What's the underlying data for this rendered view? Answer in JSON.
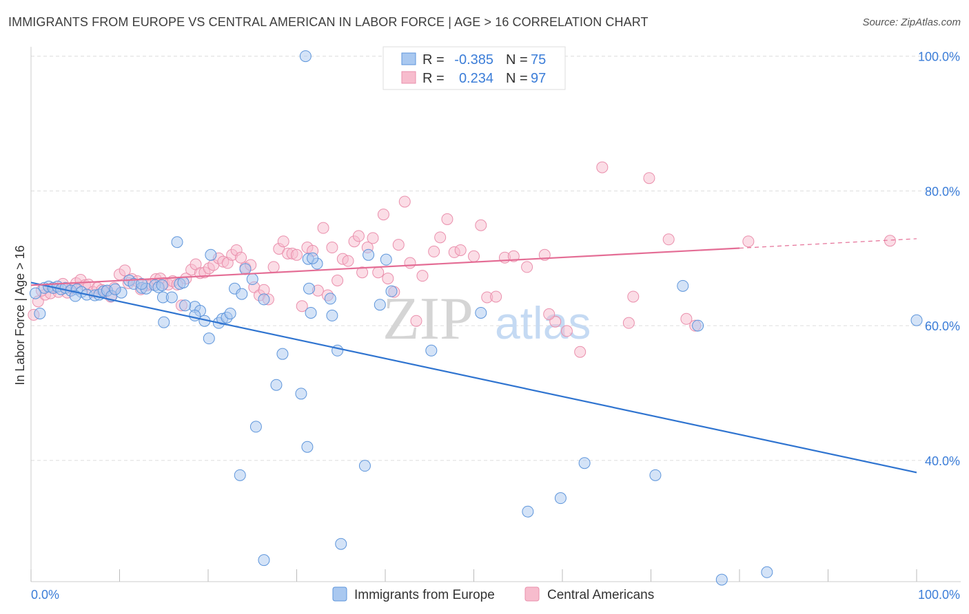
{
  "header": {
    "title": "IMMIGRANTS FROM EUROPE VS CENTRAL AMERICAN IN LABOR FORCE | AGE > 16 CORRELATION CHART",
    "source": "Source: ZipAtlas.com"
  },
  "stats": {
    "r_label": "R =",
    "n_label": "N =",
    "europe": {
      "r": "-0.385",
      "n": "75"
    },
    "central": {
      "r": "0.234",
      "n": "97"
    }
  },
  "watermark": {
    "zip": "ZIP",
    "atlas": "atlas"
  },
  "colors": {
    "europe_fill": "#a9c8f0",
    "europe_stroke": "#5d95db",
    "europe_line": "#2f74d0",
    "central_fill": "#f7bccd",
    "central_stroke": "#ea8fac",
    "central_line": "#e46d95",
    "tick": "#3b7dd8",
    "grid": "#dddddd"
  },
  "chart_data": {
    "type": "scatter",
    "title": "IMMIGRANTS FROM EUROPE VS CENTRAL AMERICAN IN LABOR FORCE | AGE > 16 CORRELATION CHART",
    "xlabel": "",
    "ylabel": "In Labor Force | Age > 16",
    "xlim": [
      0,
      100
    ],
    "ylim": [
      22,
      102
    ],
    "x_tick_labels": [
      "0.0%",
      "100.0%"
    ],
    "y_ticks": [
      40,
      60,
      80,
      100
    ],
    "y_tick_labels": [
      "40.0%",
      "60.0%",
      "80.0%",
      "100.0%"
    ],
    "grid": true,
    "legend": {
      "position": "bottom-center",
      "entries": [
        "Immigrants from Europe",
        "Central Americans"
      ]
    },
    "series": [
      {
        "name": "Immigrants from Europe",
        "r": -0.385,
        "n": 75,
        "trend": {
          "x": [
            0,
            100
          ],
          "y": [
            66.4,
            38.2
          ]
        },
        "points": [
          [
            1.5,
            65.6
          ],
          [
            2.0,
            65.8
          ],
          [
            2.5,
            65.6
          ],
          [
            3.0,
            65.8
          ],
          [
            3.4,
            65.4
          ],
          [
            3.9,
            65.6
          ],
          [
            4.5,
            65.2
          ],
          [
            5.2,
            65.4
          ],
          [
            5.7,
            65.0
          ],
          [
            6.3,
            64.6
          ],
          [
            7.2,
            64.5
          ],
          [
            7.7,
            64.6
          ],
          [
            8.2,
            65.1
          ],
          [
            8.6,
            65.2
          ],
          [
            9.1,
            64.4
          ],
          [
            10.2,
            64.9
          ],
          [
            11.1,
            66.7
          ],
          [
            11.6,
            66.2
          ],
          [
            12.5,
            65.6
          ],
          [
            13.0,
            65.5
          ],
          [
            14.0,
            66.0
          ],
          [
            14.4,
            65.7
          ],
          [
            14.9,
            64.2
          ],
          [
            15.9,
            64.2
          ],
          [
            16.8,
            66.2
          ],
          [
            17.2,
            66.4
          ],
          [
            12.5,
            66.2
          ],
          [
            9.5,
            65.4
          ],
          [
            15.0,
            60.5
          ],
          [
            14.8,
            66.0
          ],
          [
            18.5,
            62.8
          ],
          [
            19.1,
            62.2
          ],
          [
            18.5,
            61.5
          ],
          [
            17.4,
            63.0
          ],
          [
            20.1,
            58.1
          ],
          [
            19.6,
            60.7
          ],
          [
            21.2,
            60.4
          ],
          [
            21.6,
            61.0
          ],
          [
            22.1,
            61.2
          ],
          [
            22.5,
            61.8
          ],
          [
            23.0,
            65.5
          ],
          [
            23.8,
            64.7
          ],
          [
            25.0,
            66.9
          ],
          [
            24.2,
            68.4
          ],
          [
            26.3,
            63.9
          ],
          [
            20.3,
            70.5
          ],
          [
            16.5,
            72.4
          ],
          [
            28.4,
            55.8
          ],
          [
            27.7,
            51.2
          ],
          [
            30.5,
            49.9
          ],
          [
            25.4,
            45.0
          ],
          [
            31.6,
            61.9
          ],
          [
            33.8,
            64.0
          ],
          [
            32.3,
            69.2
          ],
          [
            31.3,
            69.9
          ],
          [
            31.8,
            70.0
          ],
          [
            31.4,
            65.5
          ],
          [
            38.1,
            70.5
          ],
          [
            39.4,
            63.1
          ],
          [
            40.1,
            69.8
          ],
          [
            40.7,
            65.1
          ],
          [
            34.0,
            61.5
          ],
          [
            34.6,
            56.3
          ],
          [
            31.2,
            42.0
          ],
          [
            37.7,
            39.2
          ],
          [
            23.6,
            37.8
          ],
          [
            26.3,
            25.2
          ],
          [
            35.0,
            27.6
          ],
          [
            45.2,
            56.3
          ],
          [
            48.9,
            96.6
          ],
          [
            50.8,
            61.9
          ],
          [
            56.1,
            32.4
          ],
          [
            59.8,
            34.4
          ],
          [
            62.5,
            39.6
          ],
          [
            73.6,
            65.9
          ],
          [
            70.5,
            37.8
          ],
          [
            75.3,
            60.0
          ],
          [
            78.0,
            22.3
          ],
          [
            83.1,
            23.4
          ],
          [
            100.0,
            60.8
          ],
          [
            31.0,
            100.0
          ],
          [
            1.0,
            61.8
          ],
          [
            5.0,
            64.4
          ],
          [
            0.5,
            64.8
          ]
        ]
      },
      {
        "name": "Central Americans",
        "r": 0.234,
        "n": 97,
        "trend": {
          "x": [
            0,
            80
          ],
          "y": [
            66.0,
            71.5
          ],
          "dashed_to": {
            "x": 100,
            "y": 72.9
          }
        },
        "points": [
          [
            0.8,
            63.6
          ],
          [
            1.6,
            64.6
          ],
          [
            2.2,
            64.8
          ],
          [
            2.6,
            65.6
          ],
          [
            3.1,
            65.0
          ],
          [
            3.6,
            66.2
          ],
          [
            4.1,
            64.9
          ],
          [
            4.6,
            65.6
          ],
          [
            5.1,
            66.3
          ],
          [
            5.6,
            66.8
          ],
          [
            6.1,
            66.0
          ],
          [
            6.5,
            66.1
          ],
          [
            7.0,
            65.0
          ],
          [
            7.5,
            65.6
          ],
          [
            8.0,
            65.3
          ],
          [
            8.5,
            65.1
          ],
          [
            9.0,
            64.3
          ],
          [
            9.4,
            65.6
          ],
          [
            10.0,
            67.6
          ],
          [
            10.6,
            68.2
          ],
          [
            11.0,
            66.3
          ],
          [
            11.4,
            66.9
          ],
          [
            12.0,
            66.6
          ],
          [
            12.4,
            65.4
          ],
          [
            13.1,
            66.0
          ],
          [
            13.6,
            66.1
          ],
          [
            14.1,
            66.9
          ],
          [
            14.6,
            67.0
          ],
          [
            15.0,
            66.3
          ],
          [
            15.5,
            66.1
          ],
          [
            16.0,
            66.6
          ],
          [
            16.5,
            66.1
          ],
          [
            17.0,
            63.0
          ],
          [
            17.5,
            67.0
          ],
          [
            18.1,
            68.3
          ],
          [
            18.6,
            69.1
          ],
          [
            19.1,
            67.8
          ],
          [
            19.6,
            67.9
          ],
          [
            20.1,
            68.5
          ],
          [
            20.6,
            69.0
          ],
          [
            21.2,
            70.0
          ],
          [
            21.7,
            69.5
          ],
          [
            22.2,
            69.3
          ],
          [
            22.7,
            70.5
          ],
          [
            23.2,
            71.2
          ],
          [
            23.7,
            70.1
          ],
          [
            24.2,
            68.6
          ],
          [
            24.8,
            69.0
          ],
          [
            25.2,
            65.7
          ],
          [
            25.8,
            64.5
          ],
          [
            26.3,
            65.3
          ],
          [
            26.8,
            63.9
          ],
          [
            27.4,
            68.7
          ],
          [
            28.0,
            71.4
          ],
          [
            28.5,
            72.5
          ],
          [
            29.0,
            70.7
          ],
          [
            29.5,
            70.7
          ],
          [
            30.0,
            70.5
          ],
          [
            30.6,
            62.9
          ],
          [
            31.2,
            71.6
          ],
          [
            31.8,
            71.1
          ],
          [
            32.4,
            65.2
          ],
          [
            33.0,
            74.5
          ],
          [
            33.5,
            64.5
          ],
          [
            34.0,
            71.6
          ],
          [
            34.6,
            66.7
          ],
          [
            35.2,
            69.9
          ],
          [
            35.8,
            69.6
          ],
          [
            36.5,
            72.5
          ],
          [
            37.0,
            73.3
          ],
          [
            37.4,
            67.9
          ],
          [
            38.0,
            71.6
          ],
          [
            38.6,
            73.0
          ],
          [
            39.2,
            67.9
          ],
          [
            39.8,
            76.5
          ],
          [
            40.3,
            67.0
          ],
          [
            41.0,
            65.0
          ],
          [
            41.5,
            72.0
          ],
          [
            42.2,
            78.4
          ],
          [
            42.8,
            69.3
          ],
          [
            43.5,
            60.7
          ],
          [
            44.2,
            67.4
          ],
          [
            45.5,
            71.0
          ],
          [
            46.2,
            73.1
          ],
          [
            47.0,
            75.8
          ],
          [
            47.8,
            70.9
          ],
          [
            48.5,
            71.2
          ],
          [
            50.0,
            70.3
          ],
          [
            50.8,
            74.9
          ],
          [
            51.5,
            64.2
          ],
          [
            52.5,
            64.3
          ],
          [
            53.5,
            70.1
          ],
          [
            54.5,
            70.3
          ],
          [
            56.0,
            68.7
          ],
          [
            58.0,
            70.5
          ],
          [
            59.2,
            60.6
          ],
          [
            60.5,
            59.2
          ],
          [
            62.0,
            56.1
          ],
          [
            64.5,
            83.5
          ],
          [
            68.0,
            64.3
          ],
          [
            69.8,
            81.9
          ],
          [
            72.0,
            72.8
          ],
          [
            74.0,
            61.0
          ],
          [
            75.0,
            60.0
          ],
          [
            97.0,
            72.6
          ],
          [
            58.5,
            61.7
          ],
          [
            67.5,
            60.4
          ],
          [
            81.0,
            72.5
          ],
          [
            0.3,
            61.6
          ],
          [
            1.2,
            65.2
          ]
        ]
      }
    ]
  }
}
